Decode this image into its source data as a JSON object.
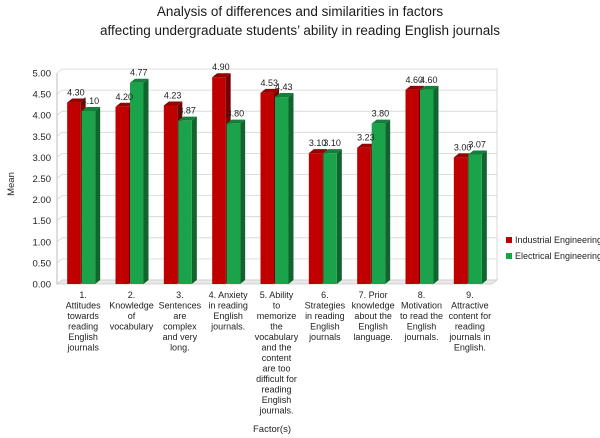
{
  "chart_data": {
    "type": "bar",
    "title_lines": [
      "Analysis of differences and similarities in factors",
      "affecting undergraduate students’ ability in reading English journals"
    ],
    "xlabel": "Factor(s)",
    "ylabel": "Mean",
    "ylim": [
      0,
      5
    ],
    "yticks": [
      "0.00",
      "0.50",
      "1.00",
      "1.50",
      "2.00",
      "2.50",
      "3.00",
      "3.50",
      "4.00",
      "4.50",
      "5.00"
    ],
    "grid": true,
    "legend_position": "right",
    "categories": [
      [
        "1.",
        "Attitudes",
        "towards",
        "reading",
        "English",
        "journals"
      ],
      [
        "2.",
        "Knowledge",
        "of",
        "vocabulary"
      ],
      [
        "3.",
        "Sentences",
        "are",
        "complex",
        "and very",
        "long."
      ],
      [
        "4. Anxiety",
        "in reading",
        "English",
        "journals."
      ],
      [
        "5. Ability",
        "to",
        "memorize",
        "the",
        "vocabulary",
        "and the",
        "content",
        "are too",
        "difficult for",
        "reading",
        "English",
        "journals."
      ],
      [
        "6.",
        "Strategies",
        "in reading",
        "English",
        "journals"
      ],
      [
        "7. Prior",
        "knowledge",
        "about the",
        "English",
        "language."
      ],
      [
        "8.",
        "Motivation",
        "to read the",
        "English",
        "journals."
      ],
      [
        "9.",
        "Attractive",
        "content for",
        "reading",
        "journals in",
        "English."
      ]
    ],
    "series": [
      {
        "name": "Industrial Engineering",
        "color": "#c00000",
        "values": [
          4.3,
          4.2,
          4.23,
          4.9,
          4.53,
          3.1,
          3.23,
          4.6,
          3.0
        ],
        "labels": [
          "4.30",
          "4.20",
          "4.23",
          "4.90",
          "4.53",
          "3.10",
          "3.23",
          "4.60",
          "3.00"
        ]
      },
      {
        "name": "Electrical Engineering",
        "color": "#1aa34a",
        "values": [
          4.1,
          4.77,
          3.87,
          3.8,
          4.43,
          3.1,
          3.8,
          4.6,
          3.07
        ],
        "labels": [
          "4.10",
          "4.77",
          "3.87",
          "3.80",
          "4.43",
          "3.10",
          "3.80",
          "4.60",
          "3.07"
        ]
      }
    ]
  }
}
